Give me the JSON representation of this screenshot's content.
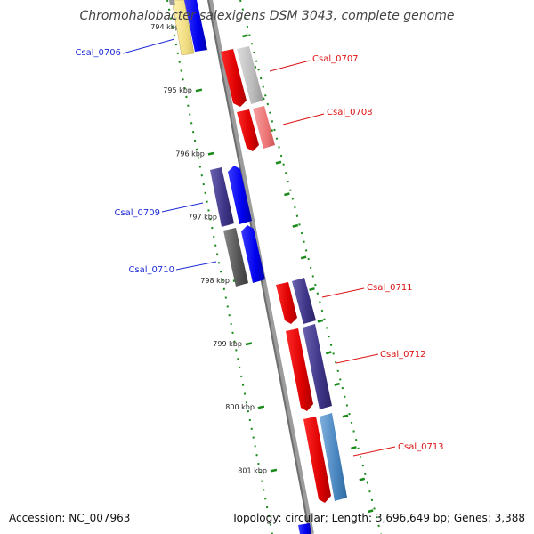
{
  "header": {
    "title": "Chromohalobacter salexigens DSM 3043, complete genome"
  },
  "footer": {
    "accession": "Accession: NC_007963",
    "stats": "Topology: circular; Length: 3,696,649 bp; Genes: 3,388"
  },
  "axis": {
    "ticks": [
      {
        "label": "794 kbp"
      },
      {
        "label": "795 kbp"
      },
      {
        "label": "796 kbp"
      },
      {
        "label": "797 kbp"
      },
      {
        "label": "798 kbp"
      },
      {
        "label": "799 kbp"
      },
      {
        "label": "800 kbp"
      },
      {
        "label": "801 kbp"
      }
    ]
  },
  "genes": [
    {
      "id": "Csal_0706",
      "strand": "left",
      "color": "#1f2bd6"
    },
    {
      "id": "Csal_0707",
      "strand": "right",
      "color": "#dd1111"
    },
    {
      "id": "Csal_0708",
      "strand": "right",
      "color": "#dd1111"
    },
    {
      "id": "Csal_0709",
      "strand": "left",
      "color": "#1f2bd6"
    },
    {
      "id": "Csal_0710",
      "strand": "left",
      "color": "#1f2bd6"
    },
    {
      "id": "Csal_0711",
      "strand": "right",
      "color": "#dd1111"
    },
    {
      "id": "Csal_0712",
      "strand": "right",
      "color": "#dd1111"
    },
    {
      "id": "Csal_0713",
      "strand": "right",
      "color": "#dd1111"
    }
  ]
}
